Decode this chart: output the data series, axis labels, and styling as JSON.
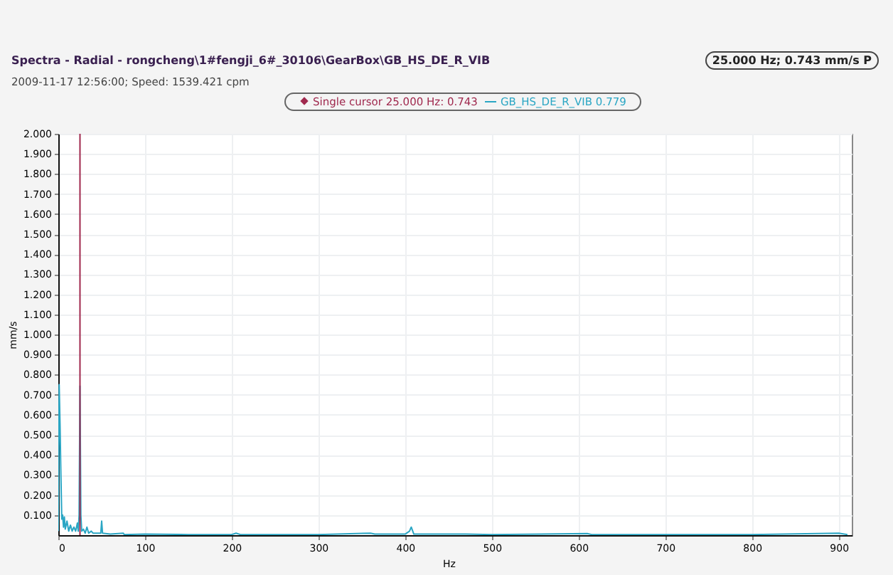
{
  "chart_data": {
    "type": "line",
    "title": "Spectra - Radial - rongcheng\\1#fengji_6#_30106\\GearBox\\GB_HS_DE_R_VIB",
    "subtitle": "2009-11-17 12:56:00; Speed: 1539.421 cpm",
    "xlabel": "Hz",
    "ylabel": "mm/s",
    "annotations": [
      "25.000 Hz; 0.743 mm/s P"
    ],
    "x": [
      0,
      1,
      2,
      3,
      4,
      5,
      6,
      7,
      8,
      10,
      12,
      14,
      16,
      18,
      20,
      22,
      23,
      24,
      25,
      26,
      27,
      29,
      31,
      33,
      35,
      38,
      40,
      45,
      49,
      50,
      51,
      60,
      75,
      76,
      100,
      150,
      200,
      205,
      210,
      300,
      360,
      365,
      400,
      405,
      407,
      410,
      470,
      500,
      610,
      615,
      700,
      800,
      900,
      910
    ],
    "series": [
      {
        "name": "GB_HS_DE_R_VIB 0.779",
        "color": "#2aa6c4",
        "values": [
          0.02,
          0.75,
          0.55,
          0.3,
          0.08,
          0.1,
          0.04,
          0.09,
          0.03,
          0.07,
          0.02,
          0.05,
          0.02,
          0.04,
          0.02,
          0.06,
          0.02,
          0.1,
          0.743,
          0.1,
          0.02,
          0.03,
          0.01,
          0.04,
          0.01,
          0.02,
          0.01,
          0.01,
          0.01,
          0.07,
          0.01,
          0.005,
          0.01,
          0.003,
          0.005,
          0.003,
          0.003,
          0.01,
          0.003,
          0.003,
          0.01,
          0.005,
          0.005,
          0.02,
          0.04,
          0.005,
          0.005,
          0.003,
          0.008,
          0.003,
          0.003,
          0.003,
          0.01,
          0.003
        ]
      }
    ],
    "ref_lines": [
      {
        "axis": "x",
        "value": 25,
        "label": "Single cursor 25.000 Hz: 0.743",
        "color": "#a0294e"
      }
    ],
    "xlim": [
      0,
      915
    ],
    "xticks": [
      0,
      100,
      200,
      300,
      400,
      500,
      600,
      700,
      800,
      900
    ],
    "ylim": [
      0,
      2
    ],
    "yticks": [
      {
        "value": 0.1,
        "label": "0.100"
      },
      {
        "value": 0.2,
        "label": "0.200"
      },
      {
        "value": 0.3,
        "label": "0.300"
      },
      {
        "value": 0.4,
        "label": "0.400"
      },
      {
        "value": 0.5,
        "label": "0.500"
      },
      {
        "value": 0.6,
        "label": "0.600"
      },
      {
        "value": 0.7,
        "label": "0.700"
      },
      {
        "value": 0.8,
        "label": "0.800"
      },
      {
        "value": 0.9,
        "label": "0.900"
      },
      {
        "value": 1,
        "label": "1.000"
      },
      {
        "value": 1.1,
        "label": "1.100"
      },
      {
        "value": 1.2,
        "label": "1.200"
      },
      {
        "value": 1.3,
        "label": "1.300"
      },
      {
        "value": 1.4,
        "label": "1.400"
      },
      {
        "value": 1.5,
        "label": "1.500"
      },
      {
        "value": 1.6,
        "label": "1.600"
      },
      {
        "value": 1.7,
        "label": "1.700"
      },
      {
        "value": 1.8,
        "label": "1.800"
      },
      {
        "value": 1.9,
        "label": "1.900"
      },
      {
        "value": 2,
        "label": "2.000"
      }
    ],
    "grid": true,
    "legend": "top",
    "line_style": "solid"
  }
}
